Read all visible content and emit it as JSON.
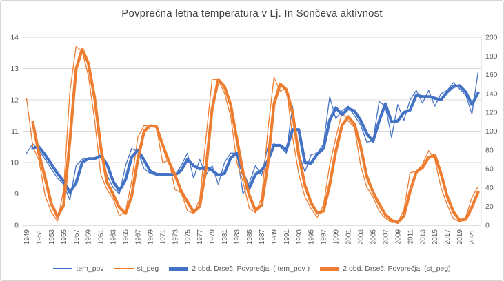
{
  "chart_data": {
    "type": "line",
    "title": "Povprečna letna temperatura v Lj. In Sončeva aktivnost",
    "legend_position": "bottom",
    "grid": "horizontal",
    "colors": {
      "temperature": "#4472C4",
      "sunspots": "#ED7D31",
      "gridline": "#D9D9D9",
      "axis_text": "#595959",
      "title_text": "#404040"
    },
    "left_axis": {
      "min": 8,
      "max": 14,
      "step": 1,
      "ticks": [
        8,
        9,
        10,
        11,
        12,
        13,
        14
      ]
    },
    "right_axis": {
      "min": 0,
      "max": 200,
      "step": 20,
      "ticks": [
        0,
        20,
        40,
        60,
        80,
        100,
        120,
        140,
        160,
        180,
        200
      ]
    },
    "x_tick_labels": [
      "1949",
      "1951",
      "1953",
      "1955",
      "1957",
      "1959",
      "1961",
      "1963",
      "1965",
      "1967",
      "1969",
      "1971",
      "1973",
      "1975",
      "1977",
      "1979",
      "1981",
      "1983",
      "1985",
      "1987",
      "1989",
      "1991",
      "1993",
      "1995",
      "1997",
      "1999",
      "2001",
      "2003",
      "2005",
      "2007",
      "2009",
      "2011",
      "2013",
      "2015",
      "2017",
      "2019",
      "2021"
    ],
    "years": [
      1949,
      1950,
      1951,
      1952,
      1953,
      1954,
      1955,
      1956,
      1957,
      1958,
      1959,
      1960,
      1961,
      1962,
      1963,
      1964,
      1965,
      1966,
      1967,
      1968,
      1969,
      1970,
      1971,
      1972,
      1973,
      1974,
      1975,
      1976,
      1977,
      1978,
      1979,
      1980,
      1981,
      1982,
      1983,
      1984,
      1985,
      1986,
      1987,
      1988,
      1989,
      1990,
      1991,
      1992,
      1993,
      1994,
      1995,
      1996,
      1997,
      1998,
      1999,
      2000,
      2001,
      2002,
      2003,
      2004,
      2005,
      2006,
      2007,
      2008,
      2009,
      2010,
      2011,
      2012,
      2013,
      2014,
      2015,
      2016,
      2017,
      2018,
      2019,
      2020,
      2021,
      2022
    ],
    "series": [
      {
        "name": "tem_pov",
        "axis": "left",
        "color": "#4472C4",
        "thickness": "thin",
        "values": [
          10.3,
          10.6,
          10.4,
          10.1,
          9.8,
          9.5,
          9.3,
          8.8,
          9.9,
          10.1,
          10.15,
          10.1,
          10.3,
          9.6,
          9.2,
          9.0,
          9.9,
          10.45,
          10.35,
          9.8,
          9.65,
          9.6,
          9.65,
          9.6,
          9.6,
          9.9,
          10.3,
          9.5,
          10.1,
          9.6,
          9.9,
          9.3,
          10.0,
          10.3,
          10.3,
          9.0,
          9.35,
          9.9,
          9.6,
          10.5,
          10.6,
          10.5,
          10.3,
          11.8,
          10.3,
          9.7,
          10.25,
          10.3,
          10.6,
          12.1,
          11.4,
          11.65,
          11.8,
          11.5,
          11.2,
          10.65,
          10.7,
          11.95,
          11.8,
          10.8,
          11.85,
          11.35,
          12.0,
          12.3,
          11.9,
          12.3,
          11.8,
          12.2,
          12.3,
          12.55,
          12.35,
          12.15,
          11.55,
          12.9
        ]
      },
      {
        "name": "st_peg",
        "axis": "right",
        "color": "#ED7D31",
        "thickness": "thin",
        "values": [
          135,
          84,
          69,
          31.5,
          14,
          4.4,
          38,
          142,
          190,
          185,
          159,
          112,
          54,
          38,
          28,
          10,
          15,
          47,
          94,
          106,
          105.5,
          104.5,
          66.6,
          69,
          38,
          34.5,
          15.5,
          12.6,
          27.5,
          92.5,
          155.4,
          154.6,
          140.4,
          116,
          66.6,
          46,
          18,
          13.4,
          29.4,
          100,
          157.6,
          142.6,
          145.7,
          94.3,
          54.6,
          30,
          17.5,
          8.6,
          21.5,
          64.3,
          93.3,
          119.6,
          111,
          104,
          63.7,
          40.4,
          30,
          15.2,
          7.5,
          2.9,
          3.1,
          16.5,
          55.7,
          57.6,
          64.7,
          79.3,
          69.8,
          39.8,
          21.7,
          7,
          3.6,
          8.8,
          29.6,
          41
        ]
      },
      {
        "name": "2 obd. Drseč. Povprečja. ( tem_pov )",
        "axis": "left",
        "color": "#4472C4",
        "thickness": "thick",
        "type": "moving_average",
        "period": 2,
        "source": "tem_pov"
      },
      {
        "name": "2 obd. Drseč. Povprečja. (st_peg)",
        "axis": "right",
        "color": "#ED7D31",
        "thickness": "thick",
        "type": "moving_average",
        "period": 2,
        "source": "st_peg"
      }
    ]
  }
}
